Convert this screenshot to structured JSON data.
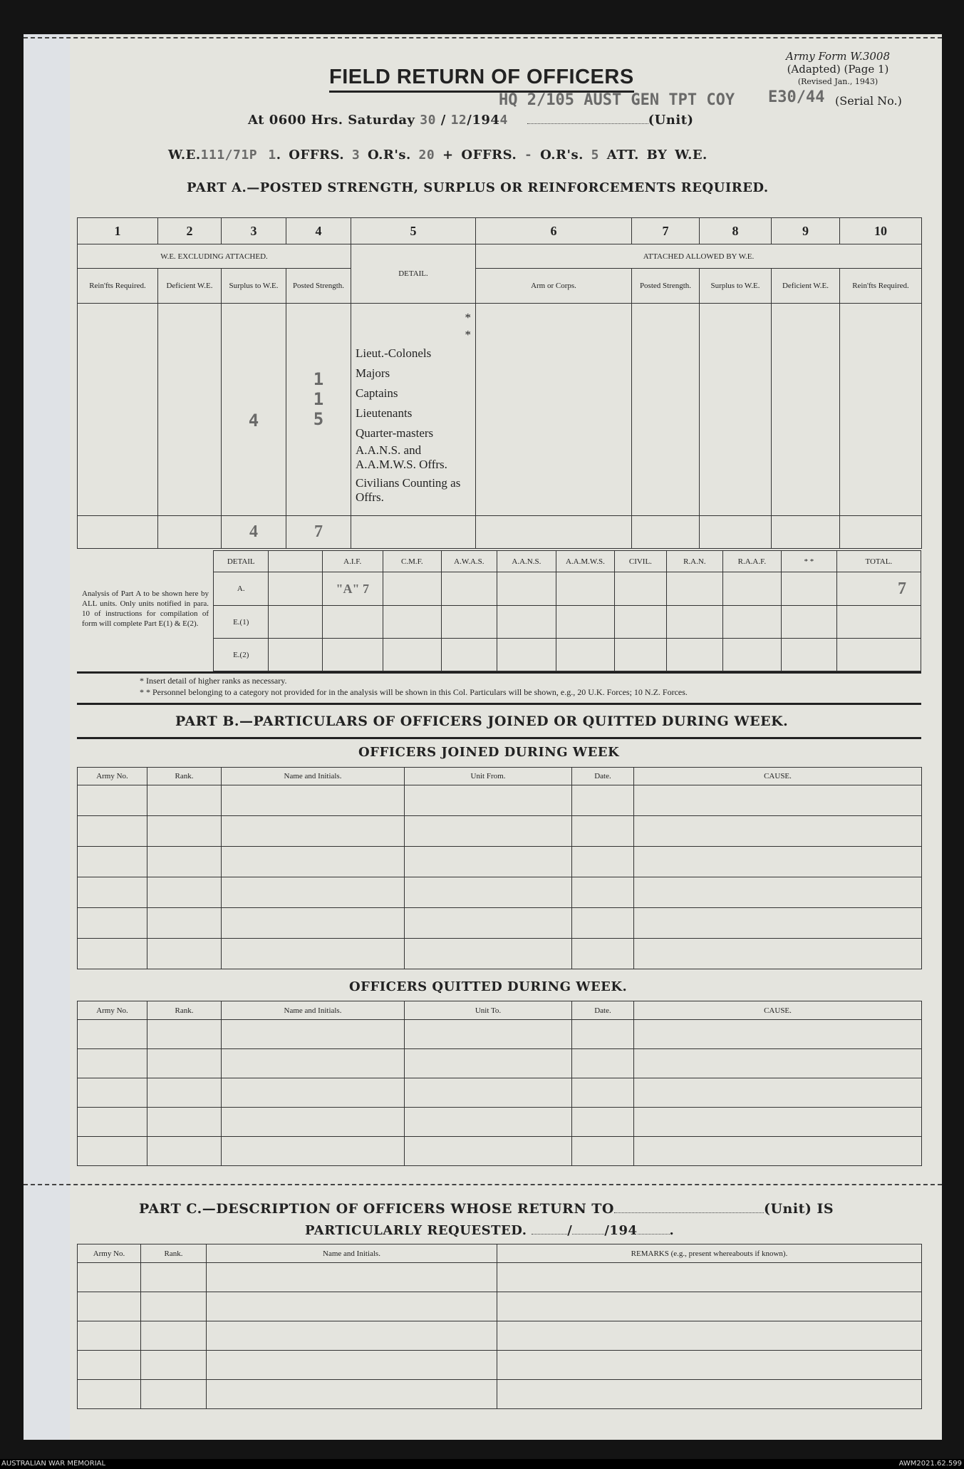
{
  "form": {
    "ref": "Army Form W.3008",
    "adapted": "(Adapted) (Page 1)",
    "revised": "(Revised Jan., 1943)",
    "title": "FIELD RETURN OF OFFICERS",
    "at_time": "At 0600 Hrs. Saturday",
    "day": "30",
    "month": "12",
    "year_prefix": "/194",
    "year_suffix": "4",
    "unit_label": "(Unit)",
    "unit_value": "HQ 2/105 AUST GEN TPT COY",
    "serial_value": "E30/44",
    "serial_label": "(Serial No.)",
    "we_label": "W.E.",
    "we_value": "111/71P 1",
    "offrs_label": "OFFRS.",
    "offrs_value": "3",
    "ors_label": "O.R's.",
    "ors_value": "20",
    "plus": "+",
    "offrs2_value": "-",
    "ors2_value": "5",
    "att_label": "ATT. BY W.E."
  },
  "part_a": {
    "heading": "PART A.—POSTED STRENGTH, SURPLUS OR REINFORCEMENTS REQUIRED.",
    "col_numbers": [
      "1",
      "2",
      "3",
      "4",
      "5",
      "6",
      "7",
      "8",
      "9",
      "10"
    ],
    "group_left": "W.E. EXCLUDING ATTACHED.",
    "group_right": "ATTACHED ALLOWED BY W.E.",
    "detail_header": "DETAIL.",
    "sub_headers": [
      "Rein'fts Required.",
      "Deficient W.E.",
      "Surplus to W.E.",
      "Posted Strength.",
      "Arm or Corps.",
      "Posted Strength.",
      "Surplus to W.E.",
      "Deficient W.E.",
      "Rein'fts Required."
    ],
    "detail_rows": [
      "*",
      "*",
      "Lieut.-Colonels",
      "Majors",
      "Captains",
      "Lieutenants",
      "Quarter-masters",
      "A.A.N.S. and A.A.M.W.S. Offrs.",
      "Civilians Counting as Offrs."
    ],
    "entries": {
      "majors_posted": "1",
      "captains_posted": "1",
      "lieutenants_surplus": "4",
      "lieutenants_posted": "5",
      "total_surplus": "4",
      "total_posted": "7"
    },
    "analysis_note": "Analysis of Part A to be shown here by ALL units. Only units notified in para. 10 of instructions for compilation of form will complete Part E(1) & E(2).",
    "analysis_headers": [
      "DETAIL",
      "",
      "A.I.F.",
      "C.M.F.",
      "A.W.A.S.",
      "A.A.N.S.",
      "A.A.M.W.S.",
      "CIVIL.",
      "R.A.N.",
      "R.A.A.F.",
      "* *",
      "TOTAL."
    ],
    "analysis_rows": [
      "A.",
      "E.(1)",
      "E.(2)"
    ],
    "aif_a": "\"A\" 7",
    "total_a": "7",
    "footnote1": "* Insert detail of higher ranks as necessary.",
    "footnote2": "* * Personnel belonging to a category not provided for in the analysis will be shown in this Col.  Particulars will be shown, e.g., 20 U.K. Forces; 10 N.Z. Forces."
  },
  "part_b": {
    "heading": "PART B.—PARTICULARS OF OFFICERS JOINED OR QUITTED DURING WEEK.",
    "joined_title": "OFFICERS JOINED DURING WEEK",
    "joined_headers": [
      "Army No.",
      "Rank.",
      "Name and Initials.",
      "Unit From.",
      "Date.",
      "CAUSE."
    ],
    "quitted_title": "OFFICERS QUITTED DURING WEEK.",
    "quitted_headers": [
      "Army No.",
      "Rank.",
      "Name and Initials.",
      "Unit To.",
      "Date.",
      "CAUSE."
    ]
  },
  "part_c": {
    "heading1": "PART C.—DESCRIPTION OF OFFICERS WHOSE RETURN TO",
    "unit_suffix": "(Unit) IS",
    "heading2": "PARTICULARLY REQUESTED.",
    "date_suffix": "/194",
    "headers": [
      "Army No.",
      "Rank.",
      "Name and Initials.",
      "REMARKS (e.g., present whereabouts if known)."
    ]
  },
  "footer": {
    "left": "AUSTRALIAN WAR MEMORIAL",
    "right": "AWM2021.62.599"
  }
}
